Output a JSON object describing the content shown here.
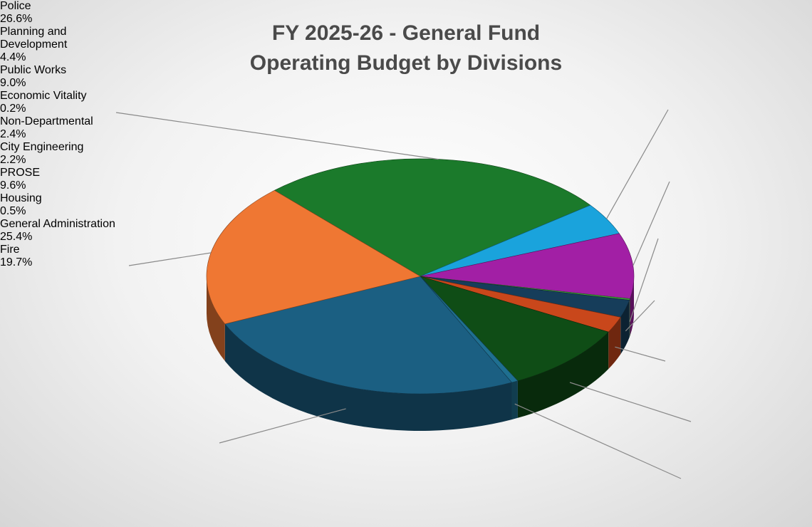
{
  "chart_data": {
    "type": "pie",
    "title": "FY 2025-26 - General Fund Operating Budget by Divisions",
    "categories": [
      "Police",
      "Planning and Development",
      "Public Works",
      "Economic Vitality",
      "Non-Departmental",
      "City Engineering",
      "PROSE",
      "Housing",
      "General Administration",
      "Fire"
    ],
    "values": [
      26.6,
      4.4,
      9.0,
      0.2,
      2.4,
      2.2,
      9.6,
      0.5,
      25.4,
      19.7
    ],
    "value_labels": [
      "26.6%",
      "4.4%",
      "9.0%",
      "0.2%",
      "2.4%",
      "2.2%",
      "9.6%",
      "0.5%",
      "25.4%",
      "19.7%"
    ],
    "colors": [
      "#1b7a2b",
      "#1aa3dc",
      "#a21fa5",
      "#3fa33a",
      "#163d5a",
      "#c9471b",
      "#0f4d16",
      "#1f6f90",
      "#1b5f82",
      "#ef7733"
    ]
  }
}
